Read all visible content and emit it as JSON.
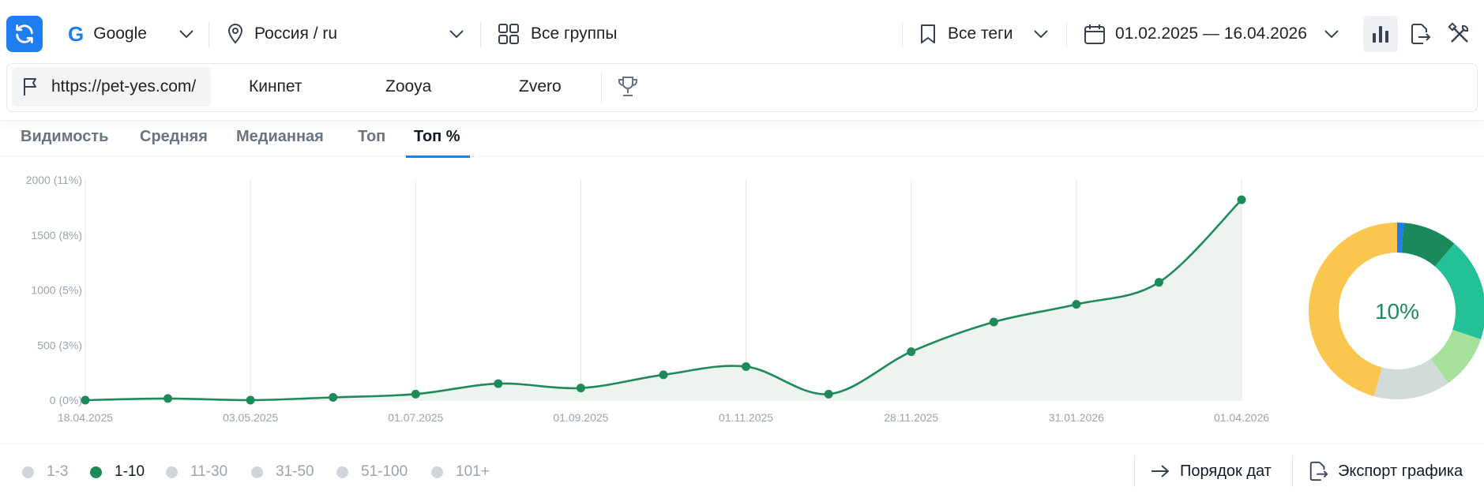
{
  "toolbar": {
    "search_engine": "Google",
    "region": "Россия / ru",
    "groups": "Все группы",
    "tags": "Все теги",
    "date_range": "01.02.2025 — 16.04.2026"
  },
  "sites": {
    "main": "https://pet-yes.com/",
    "competitors": [
      "Кинпет",
      "Zooya",
      "Zvero"
    ]
  },
  "tabs": [
    "Видимость",
    "Средняя",
    "Медианная",
    "Топ",
    "Топ %"
  ],
  "active_tab": "Топ %",
  "chart_data": {
    "type": "area",
    "y_ticks": [
      "2000 (11%)",
      "1500 (8%)",
      "1000 (5%)",
      "500 (3%)",
      "0 (0%)"
    ],
    "ylim": [
      0,
      2000
    ],
    "x_tick_labels": [
      "18.04.2025",
      "03.05.2025",
      "01.07.2025",
      "01.09.2025",
      "01.11.2025",
      "28.11.2025",
      "31.01.2026",
      "01.04.2026"
    ],
    "x": [
      "18.04.2025",
      "",
      "03.05.2025",
      "",
      "01.07.2025",
      "",
      "01.09.2025",
      "",
      "01.11.2025",
      "",
      "28.11.2025",
      "",
      "31.01.2026",
      "",
      "01.04.2026"
    ],
    "values": [
      0,
      15,
      0,
      25,
      55,
      150,
      110,
      230,
      305,
      55,
      440,
      710,
      870,
      1070,
      1820
    ],
    "grid": true,
    "line_color": "#1e8a5a",
    "fill_color": "#edf3ef",
    "donut": {
      "center_label": "10%",
      "segments": [
        {
          "share": 0.012,
          "color": "#1e7ef0"
        },
        {
          "share": 0.1,
          "color": "#1a8a5c"
        },
        {
          "share": 0.19,
          "color": "#22c197"
        },
        {
          "share": 0.1,
          "color": "#a7e29a"
        },
        {
          "share": 0.14,
          "color": "#d1dbd9"
        },
        {
          "share": 0.458,
          "color": "#fbc64d"
        }
      ]
    }
  },
  "legend": {
    "items": [
      "1-3",
      "1-10",
      "11-30",
      "31-50",
      "51-100",
      "101+"
    ],
    "active": "1-10"
  },
  "footer": {
    "order_label": "Порядок дат",
    "export_label": "Экспорт графика"
  }
}
